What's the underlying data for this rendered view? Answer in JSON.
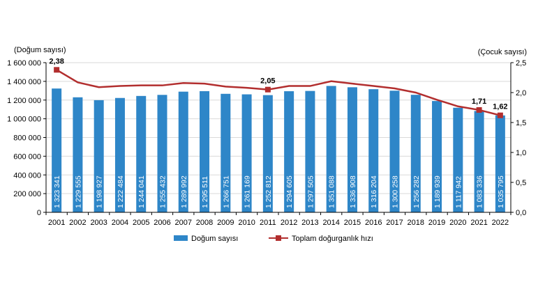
{
  "chart_data": {
    "type": "bar",
    "left_axis_title": "(Doğum sayısı)",
    "right_axis_title": "(Çocuk sayısı)",
    "categories": [
      "2001",
      "2002",
      "2003",
      "2004",
      "2005",
      "2006",
      "2007",
      "2008",
      "2009",
      "2010",
      "2011",
      "2012",
      "2013",
      "2014",
      "2015",
      "2016",
      "2017",
      "2018",
      "2019",
      "2020",
      "2021",
      "2022"
    ],
    "series": [
      {
        "name": "Doğum sayısı",
        "type": "bar",
        "axis": "left",
        "color": "#2E86C8",
        "values": [
          1323341,
          1229555,
          1198927,
          1222484,
          1244041,
          1255432,
          1289992,
          1295511,
          1266751,
          1261169,
          1252812,
          1294605,
          1297505,
          1351088,
          1336908,
          1316204,
          1300258,
          1256282,
          1189939,
          1117942,
          1083336,
          1035795
        ],
        "labels": [
          "1 323 341",
          "1 229 555",
          "1 198 927",
          "1 222 484",
          "1 244 041",
          "1 255 432",
          "1 289 992",
          "1 295 511",
          "1 266 751",
          "1 261 169",
          "1 252 812",
          "1 294 605",
          "1 297 505",
          "1 351 088",
          "1 336 908",
          "1 316 204",
          "1 300 258",
          "1 256 282",
          "1 189 939",
          "1 117 942",
          "1 083 336",
          "1 035 795"
        ]
      },
      {
        "name": "Toplam doğurganlık hızı",
        "type": "line",
        "axis": "right",
        "color": "#B22E2E",
        "values": [
          2.38,
          2.17,
          2.09,
          2.11,
          2.12,
          2.12,
          2.16,
          2.15,
          2.1,
          2.08,
          2.05,
          2.11,
          2.11,
          2.19,
          2.15,
          2.11,
          2.07,
          2.0,
          1.88,
          1.77,
          1.71,
          1.62
        ]
      }
    ],
    "point_labels": [
      {
        "index": 0,
        "text": "2,38"
      },
      {
        "index": 10,
        "text": "2,05"
      },
      {
        "index": 20,
        "text": "1,71"
      },
      {
        "index": 21,
        "text": "1,62"
      }
    ],
    "left_ylim": [
      0,
      1600000
    ],
    "left_ticks": [
      0,
      200000,
      400000,
      600000,
      800000,
      1000000,
      1200000,
      1400000,
      1600000
    ],
    "left_tick_labels": [
      "0",
      "200 000",
      "400 000",
      "600 000",
      "800 000",
      "1 000 000",
      "1 200 000",
      "1 400 000",
      "1 600 000"
    ],
    "right_ylim": [
      0,
      2.5
    ],
    "right_ticks": [
      0,
      0.5,
      1.0,
      1.5,
      2.0,
      2.5
    ],
    "right_tick_labels": [
      "0,0",
      "0,5",
      "1,0",
      "1,5",
      "2,0",
      "2,5"
    ],
    "grid": true,
    "legend_position": "bottom"
  }
}
